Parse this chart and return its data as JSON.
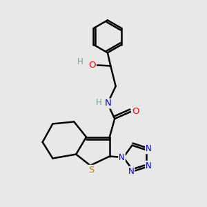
{
  "bg_color": "#e8e8e8",
  "bond_color": "#000000",
  "bond_width": 1.8,
  "atom_colors": {
    "C": "#000000",
    "H": "#7a9a9a",
    "N": "#0000cc",
    "O": "#ff0000",
    "S": "#b8860b"
  },
  "font_size": 8.5
}
